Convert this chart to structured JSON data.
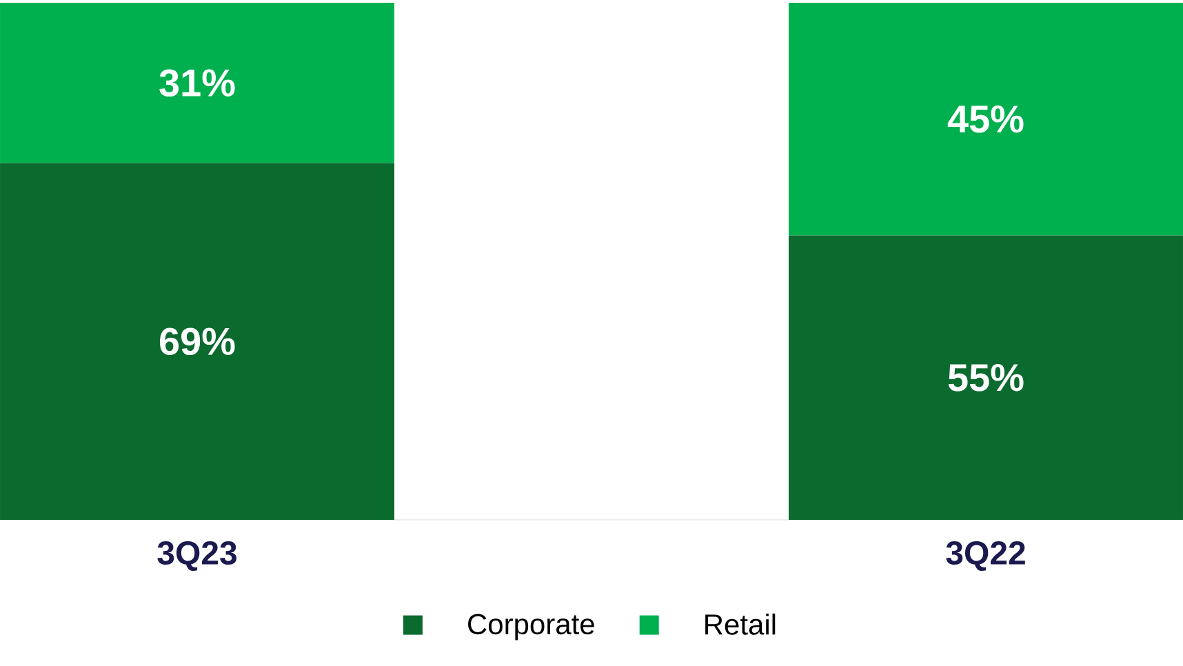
{
  "chart_data": {
    "type": "bar",
    "stacked": true,
    "categories": [
      "3Q23",
      "3Q22"
    ],
    "series": [
      {
        "name": "Corporate",
        "color": "#0b6a2e",
        "values": [
          69,
          55
        ],
        "value_labels": [
          "69%",
          "55%"
        ]
      },
      {
        "name": "Retail",
        "color": "#00b04f",
        "values": [
          31,
          45
        ],
        "value_labels": [
          "31%",
          "45%"
        ]
      }
    ],
    "ylim": [
      0,
      100
    ],
    "tick_labels": "x",
    "legend": "bottom"
  }
}
